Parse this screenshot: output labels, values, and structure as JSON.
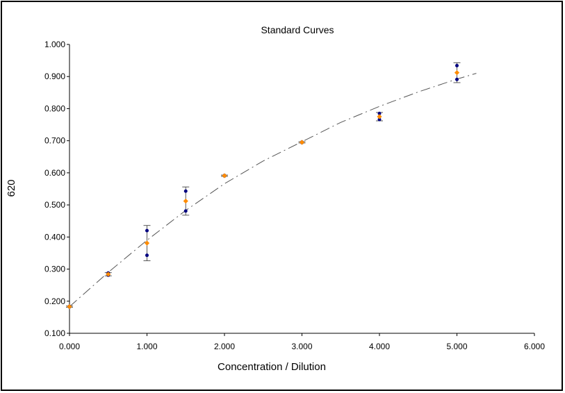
{
  "chart_data": {
    "type": "scatter",
    "title": "Standard Curves",
    "xlabel": "Concentration / Dilution",
    "ylabel": "620",
    "xlim": [
      0,
      6
    ],
    "ylim": [
      0.1,
      1.0
    ],
    "x_ticks": [
      0,
      1,
      2,
      3,
      4,
      5,
      6
    ],
    "x_tick_labels": [
      "0.000",
      "1.000",
      "2.000",
      "3.000",
      "4.000",
      "5.000",
      "6.000"
    ],
    "y_ticks": [
      0.1,
      0.2,
      0.3,
      0.4,
      0.5,
      0.6,
      0.7,
      0.8,
      0.9,
      1.0
    ],
    "y_tick_labels": [
      "0.100",
      "0.200",
      "0.300",
      "0.400",
      "0.500",
      "0.600",
      "0.700",
      "0.800",
      "0.900",
      "1.000"
    ],
    "grid": false,
    "legend": "none",
    "replicates": [
      {
        "x": 0,
        "y": 0.182
      },
      {
        "x": 0,
        "y": 0.184
      },
      {
        "x": 0.5,
        "y": 0.288
      },
      {
        "x": 0.5,
        "y": 0.281
      },
      {
        "x": 1,
        "y": 0.42
      },
      {
        "x": 1,
        "y": 0.343
      },
      {
        "x": 1.5,
        "y": 0.543
      },
      {
        "x": 1.5,
        "y": 0.481
      },
      {
        "x": 2,
        "y": 0.592
      },
      {
        "x": 2,
        "y": 0.59
      },
      {
        "x": 3,
        "y": 0.696
      },
      {
        "x": 3,
        "y": 0.694
      },
      {
        "x": 4,
        "y": 0.785
      },
      {
        "x": 4,
        "y": 0.766
      },
      {
        "x": 5,
        "y": 0.934
      },
      {
        "x": 5,
        "y": 0.891
      }
    ],
    "means": [
      {
        "x": 0,
        "y": 0.183,
        "err": 0.002
      },
      {
        "x": 0.5,
        "y": 0.284,
        "err": 0.005
      },
      {
        "x": 1,
        "y": 0.381,
        "err": 0.055
      },
      {
        "x": 1.5,
        "y": 0.512,
        "err": 0.044
      },
      {
        "x": 2,
        "y": 0.591,
        "err": 0.002
      },
      {
        "x": 3,
        "y": 0.695,
        "err": 0.002
      },
      {
        "x": 4,
        "y": 0.775,
        "err": 0.013
      },
      {
        "x": 5,
        "y": 0.912,
        "err": 0.031
      }
    ],
    "fit_curve": [
      {
        "x": 0,
        "y": 0.183
      },
      {
        "x": 0.5,
        "y": 0.29
      },
      {
        "x": 1,
        "y": 0.39
      },
      {
        "x": 1.5,
        "y": 0.483
      },
      {
        "x": 2,
        "y": 0.566
      },
      {
        "x": 2.5,
        "y": 0.637
      },
      {
        "x": 3,
        "y": 0.697
      },
      {
        "x": 3.5,
        "y": 0.757
      },
      {
        "x": 4,
        "y": 0.807
      },
      {
        "x": 4.5,
        "y": 0.852
      },
      {
        "x": 5,
        "y": 0.892
      },
      {
        "x": 5.25,
        "y": 0.91
      }
    ],
    "colors": {
      "replicate": "#000080",
      "mean": "#ff8c00",
      "error_bar": "#555555",
      "fit": "#555555",
      "axis": "#000000"
    }
  }
}
